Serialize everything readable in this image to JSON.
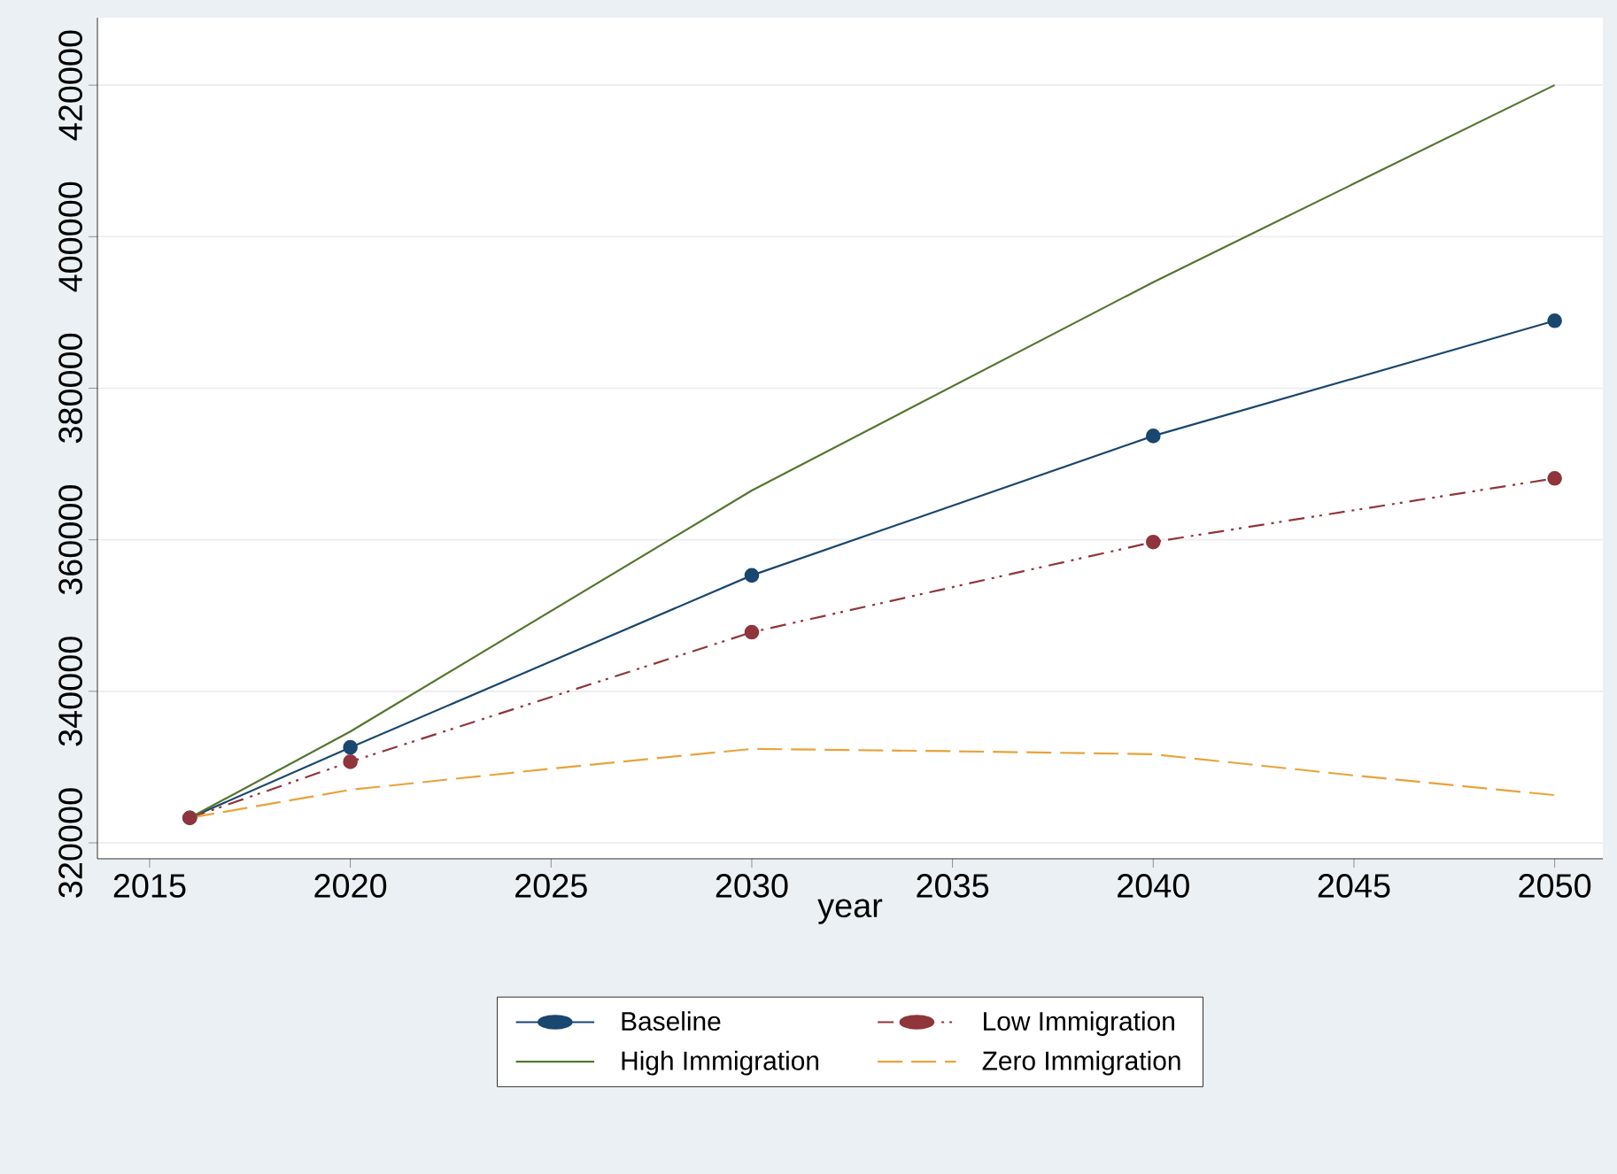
{
  "chart_data": {
    "type": "line",
    "xlabel": "year",
    "x": [
      2016,
      2020,
      2030,
      2040,
      2050
    ],
    "series": [
      {
        "name": "Baseline",
        "color": "#1a476f",
        "marker": "circle",
        "line_style": "solid",
        "values": [
          323300,
          332600,
          355300,
          373700,
          388900
        ]
      },
      {
        "name": "Low Immigration",
        "color": "#90353b",
        "marker": "circle",
        "line_style": "dashdot",
        "values": [
          323300,
          330700,
          347800,
          359700,
          368100
        ]
      },
      {
        "name": "High Immigration",
        "color": "#55752f",
        "marker": "none",
        "line_style": "solid",
        "values": [
          323300,
          334700,
          366500,
          394000,
          420000
        ]
      },
      {
        "name": "Zero Immigration",
        "color": "#e8a33a",
        "marker": "none",
        "line_style": "dashed",
        "x": [
          2016,
          2020,
          2025,
          2030,
          2035,
          2040,
          2045,
          2050
        ],
        "values": [
          323300,
          327000,
          329800,
          332400,
          332100,
          331700,
          328900,
          326300
        ]
      }
    ],
    "xlim": [
      2013.7,
      2051.2
    ],
    "ylim": [
      317900,
      428900
    ],
    "xticks": [
      2015,
      2020,
      2025,
      2030,
      2035,
      2040,
      2045,
      2050
    ],
    "yticks": [
      320000,
      340000,
      360000,
      380000,
      400000,
      420000
    ],
    "grid": "y",
    "legend": "bottom"
  }
}
